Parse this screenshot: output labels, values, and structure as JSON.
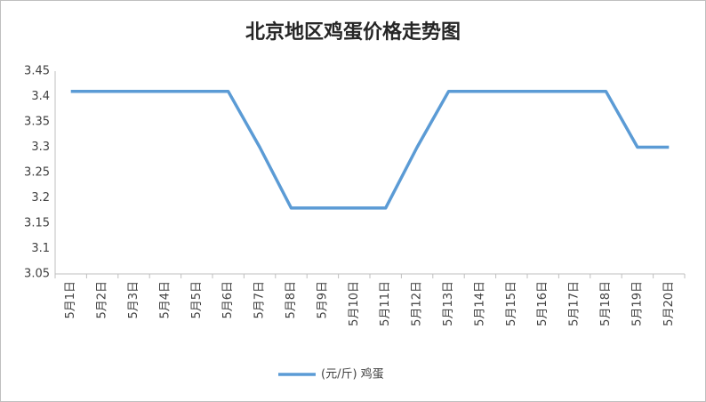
{
  "chart_data": {
    "type": "line",
    "title": "北京地区鸡蛋价格走势图",
    "categories": [
      "5月1日",
      "5月2日",
      "5月3日",
      "5月4日",
      "5月5日",
      "5月6日",
      "5月7日",
      "5月8日",
      "5月9日",
      "5月10日",
      "5月11日",
      "5月12日",
      "5月13日",
      "5月14日",
      "5月15日",
      "5月16日",
      "5月17日",
      "5月18日",
      "5月19日",
      "5月20日"
    ],
    "series": [
      {
        "name": "(元/斤) 鸡蛋",
        "color": "#5b9bd5",
        "values": [
          3.41,
          3.41,
          3.41,
          3.41,
          3.41,
          3.41,
          3.3,
          3.18,
          3.18,
          3.18,
          3.18,
          3.3,
          3.41,
          3.41,
          3.41,
          3.41,
          3.41,
          3.41,
          3.3,
          3.3
        ]
      }
    ],
    "ylim": [
      3.05,
      3.45
    ],
    "yticks": [
      3.05,
      3.1,
      3.15,
      3.2,
      3.25,
      3.3,
      3.35,
      3.4,
      3.45
    ],
    "grid": false,
    "legend": "bottom"
  }
}
